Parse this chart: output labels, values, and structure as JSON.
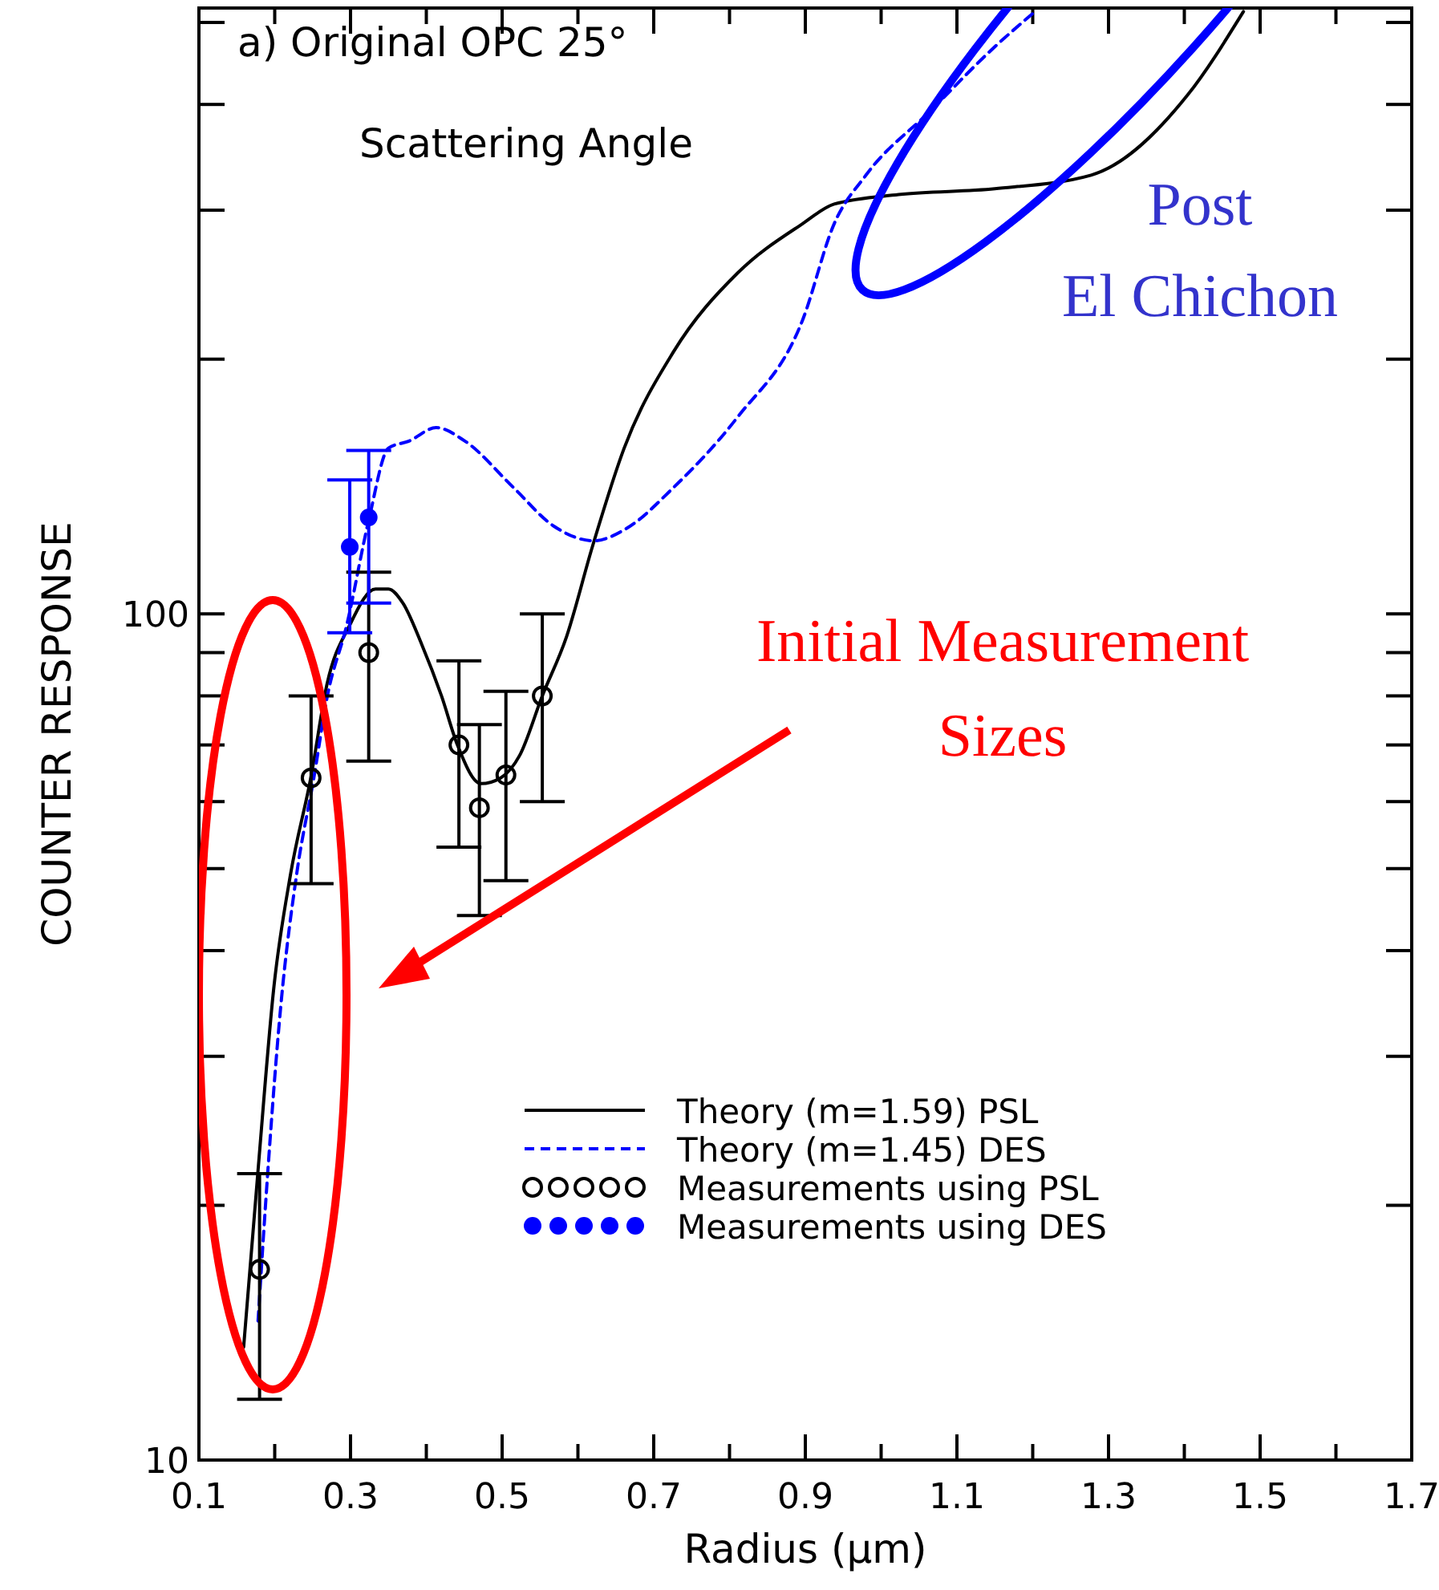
{
  "chart_data": {
    "type": "line",
    "title": "a) Original OPC 25°",
    "subtitle": "Scattering Angle",
    "xlabel": "Radius (μm)",
    "ylabel": "COUNTER RESPONSE",
    "log": true,
    "grid": false,
    "legend": "bottom right",
    "xlim": [
      0.1,
      1.7
    ],
    "xticks": [
      0.1,
      {
        "value": 0.2,
        "label": null
      },
      0.3,
      {
        "value": 0.4,
        "label": null
      },
      0.5,
      {
        "value": 0.6,
        "label": null
      },
      0.7,
      {
        "value": 0.8,
        "label": null
      },
      0.9,
      {
        "value": 1.0,
        "label": null
      },
      1.1,
      {
        "value": 1.2,
        "label": null
      },
      1.3,
      {
        "value": 1.4,
        "label": null
      },
      1.5,
      {
        "value": 1.6,
        "label": null
      },
      1.7
    ],
    "ylim": [
      10,
      520
    ],
    "yticks": [
      10,
      {
        "value": 20,
        "label": null
      },
      {
        "value": 30,
        "label": null
      },
      {
        "value": 40,
        "label": null
      },
      {
        "value": 50,
        "label": null
      },
      {
        "value": 60,
        "label": null
      },
      {
        "value": 70,
        "label": null
      },
      {
        "value": 80,
        "label": null
      },
      {
        "value": 90,
        "label": null
      },
      100,
      {
        "value": 200,
        "label": null
      },
      {
        "value": 300,
        "label": null
      },
      {
        "value": 400,
        "label": null
      },
      {
        "value": 500,
        "label": null
      }
    ],
    "annotations": [
      "Post El Chichon",
      "Initial Measurement Sizes"
    ],
    "series": [
      {
        "name": "Theory (m=1.59) PSL",
        "color": "#000000",
        "line_style": "solid",
        "marker": "none",
        "x": [
          0.159,
          0.178,
          0.199,
          0.221,
          0.248,
          0.269,
          0.299,
          0.333,
          0.35,
          0.369,
          0.394,
          0.42,
          0.441,
          0.472,
          0.498,
          0.523,
          0.553,
          0.585,
          0.619,
          0.661,
          0.726,
          0.811,
          0.896,
          0.938,
          1.023,
          1.15,
          1.277,
          1.404,
          1.478
        ],
        "values": [
          13.6,
          22,
          36.3,
          49.3,
          64.3,
          82.6,
          97,
          107,
          107,
          103,
          92,
          80,
          70,
          63,
          64,
          68,
          80,
          94,
          120,
          157,
          204,
          253,
          289,
          305,
          313,
          318,
          330,
          410,
          515
        ]
      },
      {
        "name": "Theory (m=1.45) DES",
        "type": "line",
        "color": "#0000ff",
        "line_style": "dashed",
        "marker": "none",
        "x": [
          0.178,
          0.191,
          0.208,
          0.229,
          0.252,
          0.269,
          0.295,
          0.324,
          0.35,
          0.377,
          0.413,
          0.451,
          0.515,
          0.568,
          0.621,
          0.663,
          0.726,
          0.811,
          0.896,
          0.938,
          0.98,
          1.065,
          1.15,
          1.203
        ],
        "values": [
          14.6,
          22,
          34.4,
          49.3,
          64.3,
          79.6,
          97,
          129,
          157,
          160,
          166,
          160,
          141,
          127,
          122,
          126,
          141,
          171,
          222,
          289,
          330,
          393,
          468,
          515
        ]
      },
      {
        "name": "Measurements using PSL",
        "type": "scatter",
        "color": "#000000",
        "marker": "circle",
        "x": [
          0.18,
          0.248,
          0.324,
          0.443,
          0.47,
          0.505,
          0.553
        ],
        "values": [
          16.8,
          64,
          90,
          70,
          59,
          64.5,
          80
        ],
        "errors": [
          [
            11.8,
            21.8
          ],
          [
            48,
            80
          ],
          [
            67,
            112
          ],
          [
            53,
            88
          ],
          [
            44,
            74
          ],
          [
            48.4,
            81
          ],
          [
            60,
            100
          ]
        ]
      },
      {
        "name": "Measurements using DES",
        "type": "scatter",
        "color": "#0000ff",
        "marker": "circle",
        "x": [
          0.299,
          0.324
        ],
        "values": [
          120,
          130
        ],
        "errors": [
          [
            95,
            144
          ],
          [
            103,
            156
          ]
        ]
      }
    ]
  }
}
